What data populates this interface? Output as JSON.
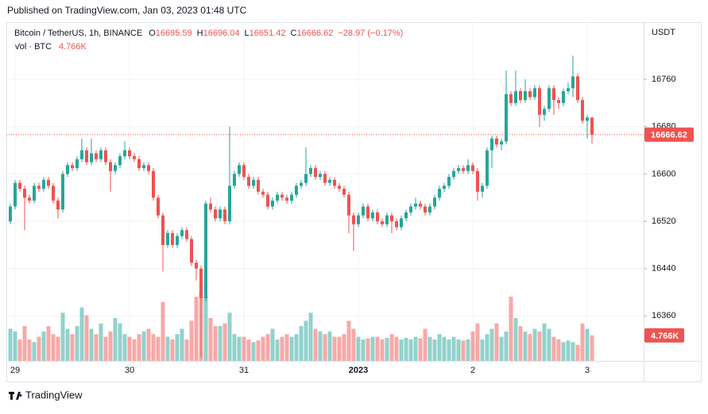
{
  "chart_data": {
    "type": "candlestick",
    "published": "Published on TradingView.com, Jan 03, 2023 01:48 UTC",
    "title": "Bitcoin / TetherUS, 1h, BINANCE",
    "ohlc_letters": [
      "O",
      "H",
      "L",
      "C"
    ],
    "change_label": "−28.97 (−0.17%)",
    "volume_title": "Vol · BTC",
    "volume_label": "4.766K",
    "axis_unit": "USDT",
    "watermark": "TradingView",
    "up_color": "#26a69a",
    "down_color": "#ef5350",
    "grid": true,
    "ylim": [
      16284,
      16854
    ],
    "yticks": [
      16360,
      16440,
      16520,
      16600,
      16680,
      16760
    ],
    "volume_ylim": [
      0,
      63
    ],
    "categories": [
      null,
      "29",
      null,
      null,
      null,
      null,
      null,
      null,
      null,
      null,
      null,
      null,
      null,
      null,
      null,
      null,
      null,
      null,
      null,
      null,
      null,
      null,
      null,
      null,
      null,
      "30",
      null,
      null,
      null,
      null,
      null,
      null,
      null,
      null,
      null,
      null,
      null,
      null,
      null,
      null,
      null,
      null,
      null,
      null,
      null,
      null,
      null,
      null,
      null,
      "31",
      null,
      null,
      null,
      null,
      null,
      null,
      null,
      null,
      null,
      null,
      null,
      null,
      null,
      null,
      null,
      null,
      null,
      null,
      null,
      null,
      null,
      null,
      null,
      "2023",
      null,
      null,
      null,
      null,
      null,
      null,
      null,
      null,
      null,
      null,
      null,
      null,
      null,
      null,
      null,
      null,
      null,
      null,
      null,
      null,
      null,
      null,
      null,
      "2",
      null,
      null,
      null,
      null,
      null,
      null,
      null,
      null,
      null,
      null,
      null,
      null,
      null,
      null,
      null,
      null,
      null,
      null,
      null,
      null,
      null,
      null,
      null,
      "3",
      null
    ],
    "open": [
      16520,
      16545,
      16585,
      16575,
      16560,
      16555,
      16580,
      16575,
      16590,
      16580,
      16555,
      16540,
      16600,
      16615,
      16610,
      16625,
      16640,
      16620,
      16635,
      16625,
      16640,
      16620,
      16605,
      16615,
      16630,
      16640,
      16630,
      16625,
      16610,
      16615,
      16605,
      16560,
      16530,
      16480,
      16500,
      16480,
      16495,
      16505,
      16490,
      16450,
      16440,
      16390,
      16550,
      16540,
      16525,
      16540,
      16520,
      16580,
      16600,
      16615,
      16595,
      16580,
      16590,
      16570,
      16565,
      16545,
      16555,
      16565,
      16560,
      16555,
      16565,
      16580,
      16585,
      16600,
      16610,
      16595,
      16600,
      16585,
      16590,
      16580,
      16575,
      16565,
      16530,
      16515,
      16530,
      16545,
      16525,
      16535,
      16520,
      16515,
      16530,
      16520,
      16510,
      16525,
      16535,
      16545,
      16550,
      16545,
      16535,
      16545,
      16560,
      16575,
      16580,
      16595,
      16605,
      16610,
      16605,
      16615,
      16605,
      16570,
      16580,
      16640,
      16660,
      16650,
      16655,
      16735,
      16720,
      16740,
      16725,
      16740,
      16730,
      16745,
      16700,
      16710,
      16745,
      16725,
      16720,
      16740,
      16745,
      16765,
      16725,
      16690,
      16695.59
    ],
    "high": [
      16550,
      16590,
      16590,
      16580,
      16565,
      16585,
      16585,
      16595,
      16595,
      16585,
      16560,
      16605,
      16620,
      16620,
      16630,
      16660,
      16645,
      16660,
      16640,
      16645,
      16645,
      16625,
      16620,
      16635,
      16655,
      16645,
      16635,
      16630,
      16620,
      16620,
      16610,
      16565,
      16535,
      16505,
      16505,
      16500,
      16510,
      16510,
      16495,
      16455,
      16445,
      16555,
      16560,
      16545,
      16545,
      16545,
      16680,
      16605,
      16620,
      16620,
      16600,
      16595,
      16595,
      16575,
      16570,
      16560,
      16570,
      16570,
      16565,
      16570,
      16585,
      16590,
      16645,
      16615,
      16615,
      16605,
      16605,
      16595,
      16595,
      16585,
      16580,
      16570,
      16535,
      16535,
      16550,
      16550,
      16540,
      16540,
      16525,
      16535,
      16535,
      16525,
      16530,
      16540,
      16550,
      16560,
      16555,
      16550,
      16550,
      16565,
      16580,
      16585,
      16600,
      16610,
      16615,
      16615,
      16625,
      16620,
      16610,
      16585,
      16645,
      16665,
      16665,
      16660,
      16775,
      16740,
      16775,
      16745,
      16760,
      16745,
      16750,
      16750,
      16715,
      16750,
      16750,
      16730,
      16745,
      16755,
      16800,
      16770,
      16730,
      16700,
      16696.04
    ],
    "low": [
      16515,
      16540,
      16570,
      16505,
      16550,
      16550,
      16570,
      16570,
      16575,
      16550,
      16525,
      16535,
      16595,
      16605,
      16605,
      16620,
      16615,
      16615,
      16620,
      16620,
      16615,
      16570,
      16600,
      16610,
      16625,
      16625,
      16620,
      16605,
      16605,
      16600,
      16555,
      16525,
      16435,
      16475,
      16475,
      16475,
      16490,
      16485,
      16445,
      16420,
      16290,
      16385,
      16535,
      16520,
      16520,
      16515,
      16515,
      16575,
      16595,
      16590,
      16575,
      16575,
      16565,
      16560,
      16540,
      16540,
      16550,
      16555,
      16550,
      16550,
      16560,
      16575,
      16580,
      16595,
      16590,
      16590,
      16580,
      16580,
      16575,
      16570,
      16560,
      16500,
      16470,
      16510,
      16525,
      16520,
      16520,
      16515,
      16510,
      16510,
      16500,
      16505,
      16505,
      16520,
      16530,
      16540,
      16540,
      16530,
      16530,
      16540,
      16555,
      16570,
      16575,
      16590,
      16600,
      16600,
      16600,
      16600,
      16555,
      16560,
      16575,
      16610,
      16645,
      16640,
      16650,
      16715,
      16715,
      16720,
      16720,
      16725,
      16725,
      16680,
      16690,
      16705,
      16700,
      16710,
      16715,
      16735,
      16730,
      16720,
      16685,
      16660,
      16651.42
    ],
    "close": [
      16545,
      16585,
      16575,
      16560,
      16555,
      16580,
      16575,
      16590,
      16580,
      16555,
      16540,
      16600,
      16615,
      16610,
      16625,
      16640,
      16620,
      16635,
      16625,
      16640,
      16620,
      16605,
      16615,
      16630,
      16640,
      16630,
      16625,
      16610,
      16615,
      16605,
      16560,
      16530,
      16480,
      16500,
      16480,
      16495,
      16505,
      16490,
      16450,
      16440,
      16390,
      16550,
      16540,
      16525,
      16540,
      16520,
      16580,
      16600,
      16615,
      16595,
      16580,
      16590,
      16570,
      16565,
      16545,
      16555,
      16565,
      16560,
      16555,
      16565,
      16580,
      16585,
      16600,
      16610,
      16595,
      16600,
      16585,
      16590,
      16580,
      16575,
      16565,
      16530,
      16515,
      16530,
      16545,
      16525,
      16535,
      16520,
      16515,
      16530,
      16520,
      16510,
      16525,
      16535,
      16545,
      16550,
      16545,
      16535,
      16545,
      16560,
      16575,
      16580,
      16595,
      16605,
      16610,
      16605,
      16615,
      16605,
      16570,
      16580,
      16640,
      16660,
      16650,
      16655,
      16735,
      16720,
      16740,
      16725,
      16740,
      16730,
      16745,
      16700,
      16710,
      16745,
      16725,
      16720,
      16740,
      16745,
      16765,
      16725,
      16690,
      16695.59,
      16666.62
    ],
    "volume": [
      6,
      5.5,
      4,
      6.5,
      4,
      3.5,
      4.5,
      5.5,
      6.5,
      5,
      4.5,
      9,
      6,
      5,
      6.5,
      10,
      8.5,
      6,
      5,
      7,
      4.5,
      5.5,
      8,
      7,
      5,
      4.5,
      4,
      5,
      5.5,
      6,
      5,
      4.5,
      11,
      4.5,
      4,
      5,
      6,
      4,
      7.5,
      12,
      13,
      12,
      8,
      6.5,
      6.5,
      7,
      9,
      5,
      4.5,
      4.5,
      4,
      3.5,
      3.8,
      4.5,
      5,
      6,
      4,
      4.5,
      5,
      4.5,
      5,
      6.5,
      7.5,
      9,
      6,
      5.5,
      5,
      5.5,
      4.5,
      4.5,
      5,
      7.5,
      6,
      4.5,
      4,
      4.2,
      4.5,
      4.5,
      4,
      4.3,
      5,
      4.5,
      4,
      4.3,
      4,
      4.5,
      4.2,
      6,
      4.5,
      4,
      5,
      4.5,
      4,
      4.5,
      4,
      3.8,
      4,
      5.5,
      7,
      4,
      5,
      6,
      7,
      4.5,
      5.5,
      12,
      8,
      6.5,
      5.5,
      5,
      6,
      5.5,
      7,
      6,
      4.5,
      4,
      3.5,
      3.8,
      3.5,
      3,
      7,
      6,
      4.766
    ]
  }
}
